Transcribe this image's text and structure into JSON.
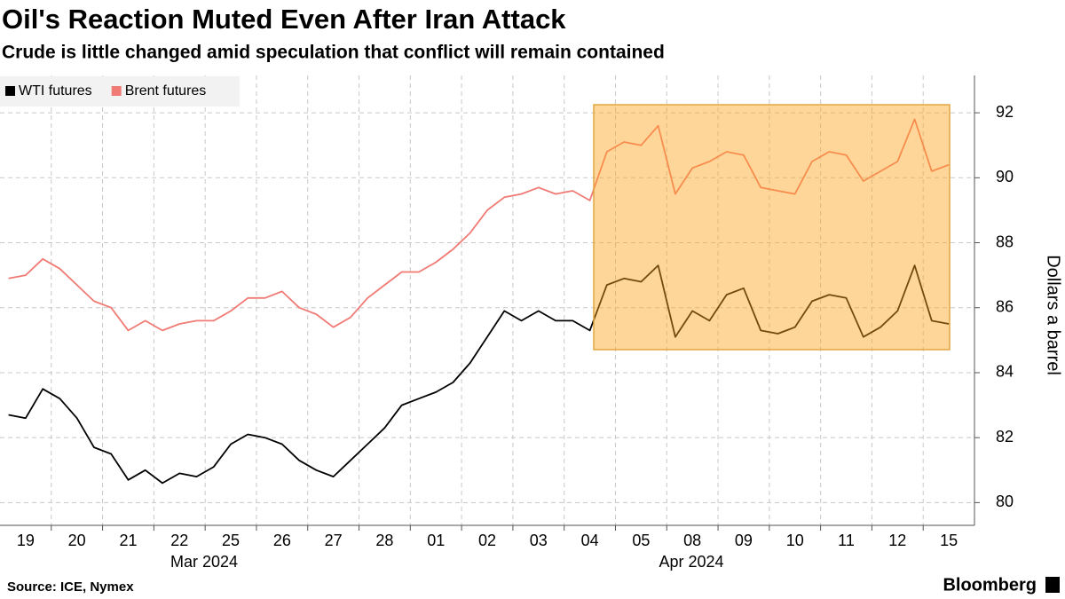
{
  "chart_data": {
    "type": "line",
    "title": "Oil's Reaction Muted Even After Iran Attack",
    "subtitle": "Crude is little changed amid speculation that conflict will remain contained",
    "y_label": "Dollars a barrel",
    "source": "Source: ICE, Nymex",
    "brand": "Bloomberg",
    "categories": [
      null,
      "19",
      null,
      null,
      "20",
      null,
      null,
      "21",
      null,
      null,
      "22",
      null,
      null,
      "25",
      null,
      null,
      "26",
      null,
      null,
      "27",
      null,
      null,
      "28",
      null,
      null,
      "01",
      null,
      null,
      "02",
      null,
      null,
      "03",
      null,
      null,
      "04",
      null,
      null,
      "05",
      null,
      null,
      "08",
      null,
      null,
      "09",
      null,
      null,
      "10",
      null,
      null,
      "11",
      null,
      null,
      "12",
      null,
      null,
      "15"
    ],
    "x_group_labels": [
      "Mar 2024",
      "Apr 2024"
    ],
    "series": [
      {
        "name": "WTI futures",
        "color": "#000000",
        "values": [
          82.7,
          82.6,
          83.5,
          83.2,
          82.6,
          81.7,
          81.5,
          80.7,
          81.0,
          80.6,
          80.9,
          80.8,
          81.1,
          81.8,
          82.1,
          82.0,
          81.8,
          81.3,
          81.0,
          80.8,
          81.3,
          81.8,
          82.3,
          83.0,
          83.2,
          83.4,
          83.7,
          84.3,
          85.1,
          85.9,
          85.6,
          85.9,
          85.6,
          85.6,
          85.3,
          86.7,
          86.9,
          86.8,
          87.3,
          85.1,
          85.9,
          85.6,
          86.4,
          86.6,
          85.3,
          85.2,
          85.4,
          86.2,
          86.4,
          86.3,
          85.1,
          85.4,
          85.9,
          87.3,
          85.6,
          85.5
        ]
      },
      {
        "name": "Brent futures",
        "color": "#f07a74",
        "values": [
          86.9,
          87.0,
          87.5,
          87.2,
          86.7,
          86.2,
          86.0,
          85.3,
          85.6,
          85.3,
          85.5,
          85.6,
          85.6,
          85.9,
          86.3,
          86.3,
          86.5,
          86.0,
          85.8,
          85.4,
          85.7,
          86.3,
          86.7,
          87.1,
          87.1,
          87.4,
          87.8,
          88.3,
          89.0,
          89.4,
          89.5,
          89.7,
          89.5,
          89.6,
          89.3,
          90.8,
          91.1,
          91.0,
          91.6,
          89.5,
          90.3,
          90.5,
          90.8,
          90.7,
          89.7,
          89.6,
          89.5,
          90.5,
          90.8,
          90.7,
          89.9,
          90.2,
          90.5,
          91.8,
          90.2,
          90.4
        ]
      }
    ],
    "ylim": [
      79.3,
      93.15
    ],
    "yticks": [
      80,
      82,
      84,
      86,
      88,
      90,
      92
    ],
    "grid": true
  }
}
